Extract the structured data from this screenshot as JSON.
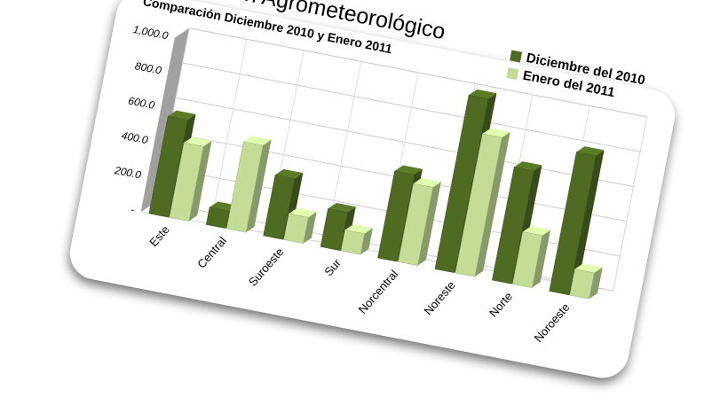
{
  "chart_data": {
    "type": "bar",
    "title": "Resumen Agrometeorológico",
    "subtitle": "Comparación Diciembre  2010  y Enero  2011",
    "categories": [
      "Este",
      "Central",
      "Suroeste",
      "Sur",
      "Norcentral",
      "Noreste",
      "Norte",
      "Noroeste"
    ],
    "series": [
      {
        "name": "Diciembre del 2010",
        "color": "#4f6b22",
        "values": [
          560,
          100,
          350,
          220,
          500,
          1000,
          650,
          800
        ]
      },
      {
        "name": "Enero del 2011",
        "color": "#c4dc96",
        "values": [
          430,
          500,
          150,
          120,
          450,
          800,
          300,
          150
        ]
      }
    ],
    "ylim": [
      0,
      1000
    ],
    "yticks": [
      {
        "value": 0,
        "label": "-"
      },
      {
        "value": 200,
        "label": "200.0"
      },
      {
        "value": 400,
        "label": "400.0"
      },
      {
        "value": 600,
        "label": "600.0"
      },
      {
        "value": 800,
        "label": "800.0"
      },
      {
        "value": 1000,
        "label": "1,000.0"
      }
    ],
    "grid": true,
    "legend": "top-right"
  }
}
